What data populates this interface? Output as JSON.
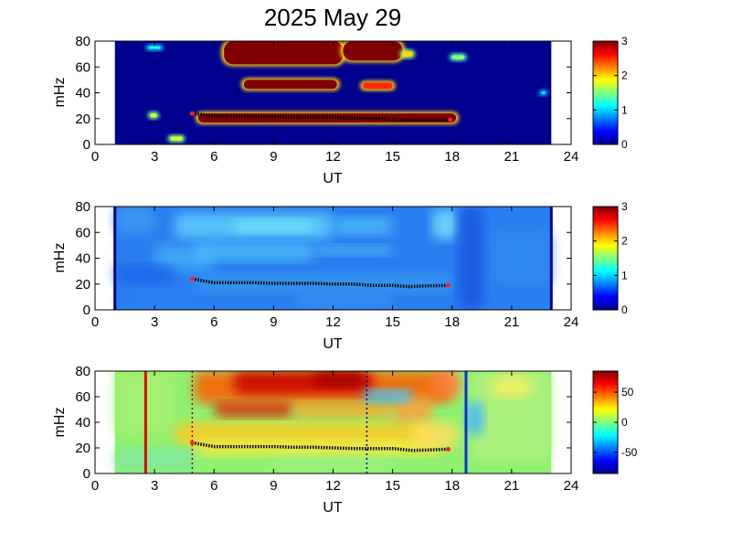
{
  "chart_data": {
    "type": "heatmap",
    "title": "2025 May 29",
    "panels": [
      {
        "id": "top",
        "xlabel": "UT",
        "ylabel": "mHz",
        "xlim": [
          0,
          24
        ],
        "ylim": [
          0,
          80
        ],
        "xticks": [
          "0",
          "3",
          "6",
          "9",
          "12",
          "15",
          "18",
          "21",
          "24"
        ],
        "yticks": [
          "0",
          "20",
          "40",
          "60",
          "80"
        ],
        "data_coverage_ut": [
          1,
          23
        ],
        "background_color": "#00008f",
        "colorbar": {
          "min": 0,
          "max": 3,
          "ticks": [
            "0",
            "1",
            "2",
            "3"
          ]
        },
        "blobs": [
          {
            "ut": [
              5.2,
              18.2
            ],
            "mhz": [
              17,
              24
            ],
            "level": 3
          },
          {
            "ut": [
              6.5,
              12.5
            ],
            "mhz": [
              62,
              80
            ],
            "level": 3
          },
          {
            "ut": [
              12.5,
              15.5
            ],
            "mhz": [
              65,
              80
            ],
            "level": 3
          },
          {
            "ut": [
              7.5,
              12.2
            ],
            "mhz": [
              43,
              50
            ],
            "level": 3
          },
          {
            "ut": [
              13.5,
              15.0
            ],
            "mhz": [
              43,
              48
            ],
            "level": 2.5
          },
          {
            "ut": [
              15.5,
              16.0
            ],
            "mhz": [
              68,
              72
            ],
            "level": 2
          },
          {
            "ut": [
              18.0,
              18.6
            ],
            "mhz": [
              66,
              69
            ],
            "level": 1.6
          },
          {
            "ut": [
              3.8,
              4.4
            ],
            "mhz": [
              3,
              6
            ],
            "level": 1.8
          },
          {
            "ut": [
              2.7,
              3.3
            ],
            "mhz": [
              74,
              76
            ],
            "level": 1.2
          },
          {
            "ut": [
              2.8,
              3.1
            ],
            "mhz": [
              21,
              24
            ],
            "level": 1.8
          },
          {
            "ut": [
              22.5,
              22.7
            ],
            "mhz": [
              39,
              41
            ],
            "level": 1.1
          }
        ],
        "ridge": {
          "ut": [
            4.9,
            6,
            7,
            8,
            9,
            10,
            11,
            12,
            13,
            14,
            15,
            16,
            17,
            17.9
          ],
          "mhz": [
            24,
            22,
            22,
            21.5,
            21.5,
            21,
            21,
            21,
            20.5,
            20,
            19.5,
            19,
            19,
            19
          ]
        }
      },
      {
        "id": "middle",
        "xlabel": "UT",
        "ylabel": "mHz",
        "xlim": [
          0,
          24
        ],
        "ylim": [
          0,
          80
        ],
        "xticks": [
          "0",
          "3",
          "6",
          "9",
          "12",
          "15",
          "18",
          "21",
          "24"
        ],
        "yticks": [
          "0",
          "20",
          "40",
          "60",
          "80"
        ],
        "data_coverage_ut": [
          1,
          23
        ],
        "colorbar": {
          "min": 0,
          "max": 3,
          "ticks": [
            "0",
            "1",
            "2",
            "3"
          ]
        },
        "edge_lines_ut": [
          1,
          23
        ],
        "ridge": {
          "ut": [
            4.9,
            6,
            7,
            8,
            9,
            10,
            11,
            12,
            13,
            14,
            15,
            15.8,
            16.5,
            17.8
          ],
          "mhz": [
            24,
            21,
            21,
            21,
            20.5,
            20.5,
            20.5,
            20,
            20,
            19,
            19,
            18,
            18.5,
            19
          ]
        }
      },
      {
        "id": "bottom",
        "xlabel": "UT",
        "ylabel": "mHz",
        "xlim": [
          0,
          24
        ],
        "ylim": [
          0,
          80
        ],
        "xticks": [
          "0",
          "3",
          "6",
          "9",
          "12",
          "15",
          "18",
          "21",
          "24"
        ],
        "yticks": [
          "0",
          "20",
          "40",
          "60",
          "80"
        ],
        "data_coverage_ut": [
          1,
          23
        ],
        "colorbar": {
          "min": -85,
          "max": 85,
          "ticks": [
            "50",
            "0",
            "-50"
          ],
          "tick_values": [
            50,
            0,
            -50
          ]
        },
        "vertical_lines": [
          {
            "ut": 2.55,
            "color": "#e00000",
            "style": "solid"
          },
          {
            "ut": 18.7,
            "color": "#1030d0",
            "style": "solid"
          },
          {
            "ut": 4.9,
            "color": "#8b0000",
            "style": "dotted"
          },
          {
            "ut": 13.7,
            "color": "#00008b",
            "style": "dotted"
          }
        ],
        "ridge": {
          "ut": [
            4.9,
            6,
            7,
            8,
            9,
            10,
            11,
            12,
            13,
            14,
            15,
            16,
            17,
            17.8
          ],
          "mhz": [
            24,
            21,
            21,
            21,
            21,
            20.5,
            20.5,
            20,
            19.5,
            19.5,
            19.5,
            18,
            18.5,
            19
          ]
        }
      }
    ]
  }
}
